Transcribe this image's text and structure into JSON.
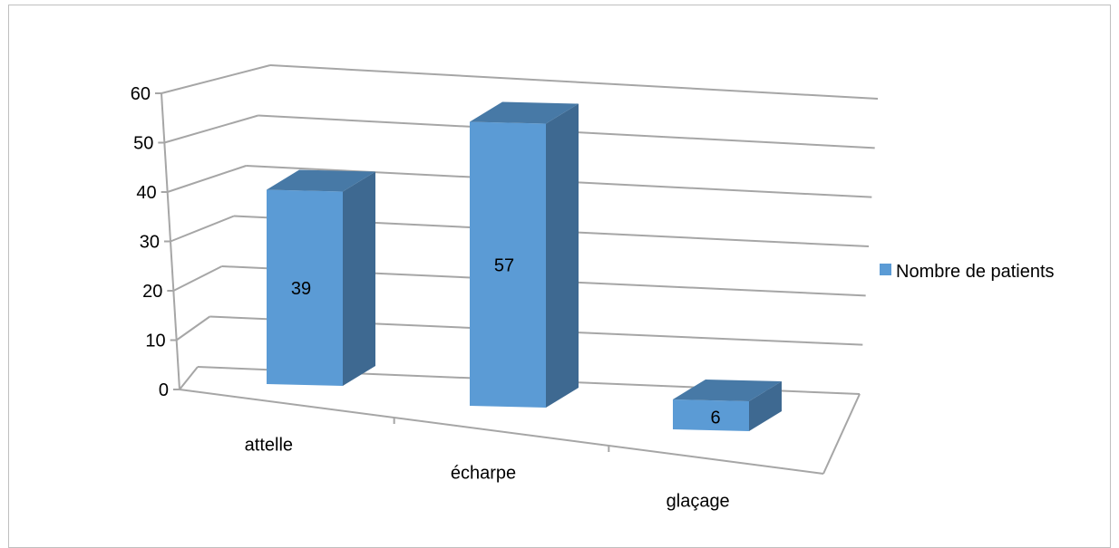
{
  "chart_data": {
    "type": "bar",
    "categories": [
      "attelle",
      "écharpe",
      "glaçage"
    ],
    "series": [
      {
        "name": "Nombre de patients",
        "values": [
          39,
          57,
          6
        ],
        "color": "#5B9BD5"
      }
    ],
    "ylim": [
      0,
      60
    ],
    "yticks": [
      "0",
      "10",
      "20",
      "30",
      "40",
      "50",
      "60"
    ],
    "grid": true,
    "legend_position": "right",
    "data_labels": [
      "39",
      "57",
      "6"
    ],
    "style": "3d-column"
  }
}
